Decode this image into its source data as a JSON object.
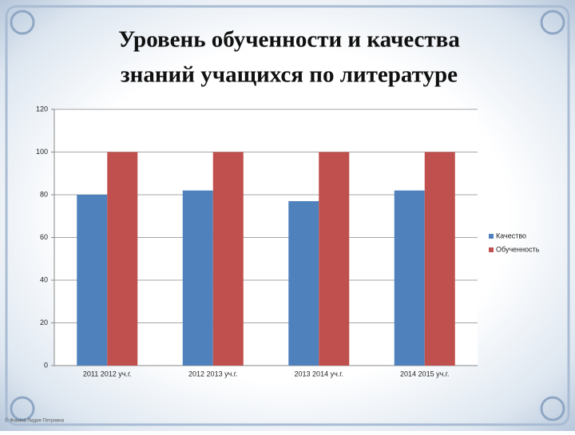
{
  "chart_data": {
    "type": "bar",
    "title": [
      "Уровень обученности и качества",
      "знаний учащихся по литературе"
    ],
    "categories": [
      "2011 2012 уч.г.",
      "2012 2013 уч.г.",
      "2013 2014 уч.г.",
      "2014 2015 уч.г."
    ],
    "series": [
      {
        "name": "Качество",
        "color": "#4f81bd",
        "values": [
          80,
          82,
          77,
          82
        ]
      },
      {
        "name": "Обученность",
        "color": "#c0504d",
        "values": [
          100,
          100,
          100,
          100
        ]
      }
    ],
    "ylim": [
      0,
      120
    ],
    "yticks": [
      0,
      20,
      40,
      60,
      80,
      100,
      120
    ],
    "grid": true,
    "legend": "right"
  },
  "credit": "© Фокина Лидия Петровна"
}
